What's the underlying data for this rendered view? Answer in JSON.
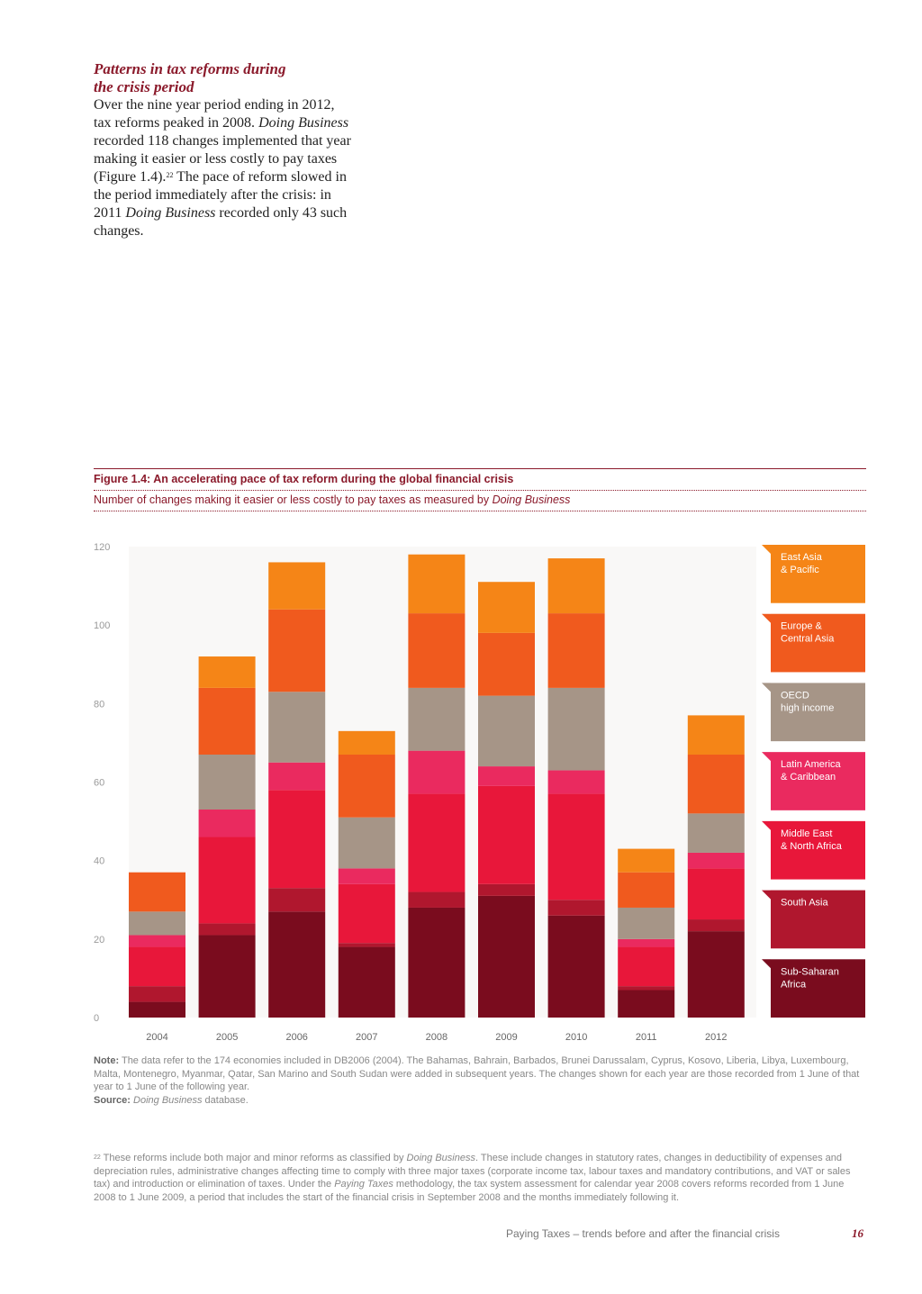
{
  "intro": {
    "heading_line1": "Patterns in tax reforms during",
    "heading_line2": "the crisis period",
    "body_1": "Over the nine year period ending in 2012, tax reforms peaked in 2008.",
    "body_italic_1": "Doing Business",
    "body_2": "recorded 118 changes implemented that year making it easier or less costly to pay taxes (Figure 1.4).",
    "footnote_ref": "22",
    "body_3": "The pace of reform slowed in the period immediately after the crisis: in 2011",
    "body_italic_2": "Doing Business",
    "body_4": "recorded only 43 such changes."
  },
  "figure": {
    "title": "Figure 1.4: An accelerating pace of tax reform during the global financial crisis",
    "subtitle_main": "Number of changes making it easier or less costly to pay taxes as measured by",
    "subtitle_italic": "Doing Business"
  },
  "chart_data": {
    "type": "bar",
    "stacked": true,
    "categories": [
      "2004",
      "2005",
      "2006",
      "2007",
      "2008",
      "2009",
      "2010",
      "2011",
      "2012"
    ],
    "ylim": [
      0,
      120
    ],
    "yticks": [
      "0",
      "20",
      "40",
      "60",
      "80",
      "100",
      "120"
    ],
    "grid": false,
    "legend_position": "right",
    "series": [
      {
        "name": "Sub-Saharan Africa",
        "color": "#7a0c1e",
        "values": [
          4,
          21,
          27,
          18,
          28,
          31,
          26,
          7,
          22
        ]
      },
      {
        "name": "South Asia",
        "color": "#b0172e",
        "values": [
          4,
          3,
          6,
          1,
          4,
          3,
          4,
          1,
          3
        ]
      },
      {
        "name": "Middle East & North Africa",
        "color": "#e8173a",
        "values": [
          10,
          22,
          25,
          15,
          25,
          25,
          27,
          10,
          13
        ]
      },
      {
        "name": "Latin America & Caribbean",
        "color": "#ea2a5f",
        "values": [
          3,
          7,
          7,
          4,
          11,
          5,
          6,
          2,
          4
        ]
      },
      {
        "name": "OECD high income",
        "color": "#a69587",
        "values": [
          6,
          14,
          18,
          13,
          16,
          18,
          21,
          8,
          10
        ]
      },
      {
        "name": "Europe & Central Asia",
        "color": "#f05a1e",
        "values": [
          10,
          17,
          21,
          16,
          19,
          16,
          19,
          9,
          15
        ]
      },
      {
        "name": "East Asia & Pacific",
        "color": "#f58517",
        "values": [
          0,
          8,
          12,
          6,
          15,
          13,
          14,
          6,
          10
        ]
      }
    ],
    "legend_lines": [
      {
        "line1": "East Asia",
        "line2": "& Pacific"
      },
      {
        "line1": "Europe &",
        "line2": "Central Asia"
      },
      {
        "line1": "OECD",
        "line2": "high income"
      },
      {
        "line1": "Latin America",
        "line2": "& Caribbean"
      },
      {
        "line1": "Middle East",
        "line2": "& North Africa"
      },
      {
        "line1": "South Asia",
        "line2": ""
      },
      {
        "line1": "Sub-Saharan",
        "line2": "Africa"
      }
    ]
  },
  "note": {
    "label": "Note:",
    "text": "The data refer to the 174 economies included in DB2006 (2004). The Bahamas, Bahrain, Barbados, Brunei Darussalam, Cyprus, Kosovo, Liberia, Libya, Luxembourg, Malta, Montenegro, Myanmar, Qatar, San Marino and South Sudan were added in subsequent years. The changes shown for each year are those recorded from 1 June of that year to 1 June of the following year.",
    "source_label": "Source:",
    "source_italic": "Doing Business",
    "source_text": "database."
  },
  "footnote": {
    "number": "22",
    "part1": "These reforms include both major and minor reforms as classified by",
    "italic1": "Doing Business",
    "part2": ". These include changes in statutory rates, changes in deductibility of expenses and depreciation rules, administrative changes affecting time to comply with three major taxes (corporate income tax, labour taxes and mandatory contributions, and VAT or sales tax) and introduction or elimination of taxes. Under the",
    "italic2": "Paying Taxes",
    "part3": "methodology, the tax system assessment for calendar year 2008 covers reforms recorded from 1 June 2008 to 1 June 2009, a period that includes the start of the financial crisis in September 2008 and the months immediately following it."
  },
  "footer": {
    "text": "Paying Taxes – trends before and after the financial crisis",
    "page": "16"
  }
}
